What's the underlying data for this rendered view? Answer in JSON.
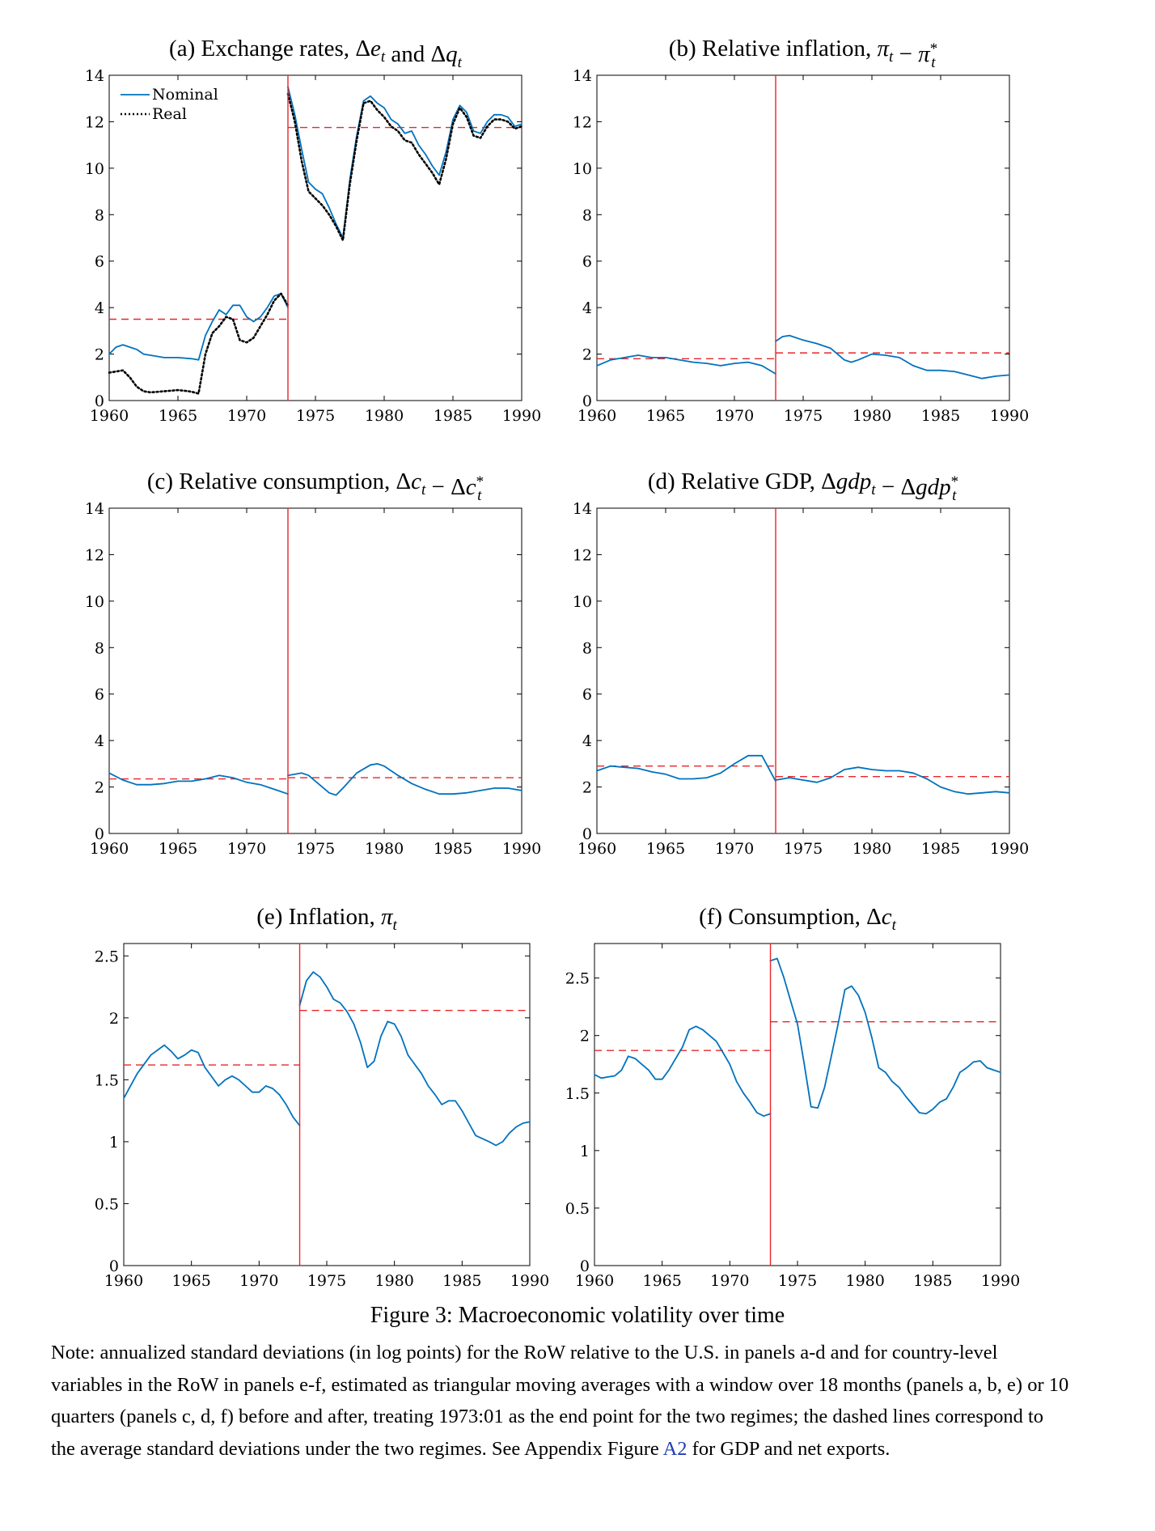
{
  "chart_data": [
    {
      "id": "a",
      "type": "line",
      "title": "(a) Exchange rates, Δe_t and Δq_t",
      "xlim": [
        1960,
        1990
      ],
      "ylim": [
        0,
        14
      ],
      "xticks": [
        1960,
        1965,
        1970,
        1975,
        1980,
        1985,
        1990
      ],
      "yticks": [
        0,
        2,
        4,
        6,
        8,
        10,
        12,
        14
      ],
      "break_year": 1973,
      "regime_means": [
        {
          "x": [
            1960,
            1973
          ],
          "y": 3.5
        },
        {
          "x": [
            1973,
            1990
          ],
          "y": 11.75
        }
      ],
      "legend": {
        "position": "top-left",
        "entries": [
          "Nominal",
          "Real"
        ]
      },
      "series": [
        {
          "name": "Nominal",
          "style": "solid",
          "x": [
            1960,
            1960.5,
            1961,
            1961.5,
            1962,
            1962.5,
            1963,
            1964,
            1965,
            1966,
            1966.5,
            1967,
            1967.5,
            1968,
            1968.5,
            1969,
            1969.5,
            1970,
            1970.5,
            1971,
            1971.5,
            1972,
            1972.5,
            1973
          ],
          "y": [
            2.0,
            2.3,
            2.4,
            2.3,
            2.2,
            2.0,
            1.95,
            1.85,
            1.85,
            1.8,
            1.75,
            2.8,
            3.4,
            3.9,
            3.7,
            4.1,
            4.1,
            3.6,
            3.4,
            3.6,
            4.0,
            4.5,
            4.6,
            4.0
          ]
        },
        {
          "name": "Nominal",
          "style": "solid",
          "x": [
            1973,
            1973.5,
            1974,
            1974.5,
            1975,
            1975.5,
            1976,
            1976.5,
            1977,
            1977.5,
            1978,
            1978.5,
            1979,
            1979.5,
            1980,
            1980.5,
            1981,
            1981.5,
            1982,
            1982.5,
            1983,
            1983.5,
            1984,
            1984.5,
            1985,
            1985.5,
            1986,
            1986.5,
            1987,
            1987.5,
            1988,
            1988.5,
            1989,
            1989.5,
            1990
          ],
          "y": [
            13.5,
            12.3,
            10.8,
            9.4,
            9.1,
            8.9,
            8.3,
            7.6,
            7.0,
            9.5,
            11.4,
            12.9,
            13.1,
            12.8,
            12.6,
            12.1,
            11.9,
            11.5,
            11.6,
            11.0,
            10.6,
            10.1,
            9.7,
            10.7,
            12.1,
            12.7,
            12.4,
            11.6,
            11.5,
            12.0,
            12.3,
            12.3,
            12.2,
            11.8,
            11.9
          ]
        },
        {
          "name": "Real",
          "style": "dotted",
          "x": [
            1960,
            1960.5,
            1961,
            1961.5,
            1962,
            1962.5,
            1963,
            1964,
            1965,
            1965.5,
            1966,
            1966.5,
            1967,
            1967.5,
            1968,
            1968.5,
            1969,
            1969.5,
            1970,
            1970.5,
            1971,
            1971.5,
            1972,
            1972.5,
            1973
          ],
          "y": [
            1.2,
            1.25,
            1.3,
            1.0,
            0.6,
            0.4,
            0.35,
            0.4,
            0.45,
            0.42,
            0.38,
            0.3,
            2.0,
            2.9,
            3.2,
            3.6,
            3.5,
            2.6,
            2.5,
            2.7,
            3.2,
            3.7,
            4.3,
            4.6,
            4.1
          ]
        },
        {
          "name": "Real",
          "style": "dotted",
          "x": [
            1973,
            1973.5,
            1974,
            1974.5,
            1975,
            1975.5,
            1976,
            1976.5,
            1977,
            1977.5,
            1978,
            1978.5,
            1979,
            1979.5,
            1980,
            1980.5,
            1981,
            1981.5,
            1982,
            1982.5,
            1983,
            1983.5,
            1984,
            1984.5,
            1985,
            1985.5,
            1986,
            1986.5,
            1987,
            1987.5,
            1988,
            1988.5,
            1989,
            1989.5,
            1990
          ],
          "y": [
            13.2,
            12.0,
            10.3,
            9.0,
            8.7,
            8.4,
            8.0,
            7.5,
            6.9,
            9.3,
            11.2,
            12.8,
            12.9,
            12.5,
            12.2,
            11.8,
            11.6,
            11.2,
            11.1,
            10.6,
            10.2,
            9.8,
            9.3,
            10.4,
            11.9,
            12.6,
            12.2,
            11.4,
            11.3,
            11.8,
            12.1,
            12.1,
            12.0,
            11.7,
            11.8
          ]
        }
      ]
    },
    {
      "id": "b",
      "type": "line",
      "title": "(b) Relative inflation, π_t − π*_t",
      "xlim": [
        1960,
        1990
      ],
      "ylim": [
        0,
        14
      ],
      "xticks": [
        1960,
        1965,
        1970,
        1975,
        1980,
        1985,
        1990
      ],
      "yticks": [
        0,
        2,
        4,
        6,
        8,
        10,
        12,
        14
      ],
      "break_year": 1973,
      "regime_means": [
        {
          "x": [
            1960,
            1973
          ],
          "y": 1.8
        },
        {
          "x": [
            1973,
            1990
          ],
          "y": 2.05
        }
      ],
      "series": [
        {
          "name": "",
          "style": "solid",
          "x": [
            1960,
            1961,
            1962,
            1963,
            1964,
            1965,
            1966,
            1967,
            1968,
            1969,
            1970,
            1971,
            1972,
            1973
          ],
          "y": [
            1.5,
            1.75,
            1.85,
            1.95,
            1.85,
            1.85,
            1.75,
            1.65,
            1.6,
            1.5,
            1.6,
            1.65,
            1.5,
            1.15
          ]
        },
        {
          "name": "",
          "style": "solid",
          "x": [
            1973,
            1973.5,
            1974,
            1975,
            1976,
            1977,
            1978,
            1978.5,
            1979,
            1980,
            1981,
            1982,
            1983,
            1984,
            1985,
            1986,
            1987,
            1988,
            1989,
            1990
          ],
          "y": [
            2.55,
            2.75,
            2.8,
            2.6,
            2.45,
            2.25,
            1.75,
            1.65,
            1.75,
            2.0,
            1.95,
            1.85,
            1.5,
            1.3,
            1.3,
            1.25,
            1.1,
            0.95,
            1.05,
            1.1
          ]
        }
      ]
    },
    {
      "id": "c",
      "type": "line",
      "title": "(c) Relative consumption, Δc_t − Δc*_t",
      "xlim": [
        1960,
        1990
      ],
      "ylim": [
        0,
        14
      ],
      "xticks": [
        1960,
        1965,
        1970,
        1975,
        1980,
        1985,
        1990
      ],
      "yticks": [
        0,
        2,
        4,
        6,
        8,
        10,
        12,
        14
      ],
      "break_year": 1973,
      "regime_means": [
        {
          "x": [
            1960,
            1973
          ],
          "y": 2.35
        },
        {
          "x": [
            1973,
            1990
          ],
          "y": 2.4
        }
      ],
      "series": [
        {
          "name": "",
          "style": "solid",
          "x": [
            1960,
            1961,
            1962,
            1963,
            1964,
            1965,
            1966,
            1967,
            1968,
            1969,
            1970,
            1971,
            1972,
            1973
          ],
          "y": [
            2.6,
            2.3,
            2.1,
            2.1,
            2.15,
            2.25,
            2.25,
            2.35,
            2.5,
            2.4,
            2.2,
            2.1,
            1.9,
            1.7
          ]
        },
        {
          "name": "",
          "style": "solid",
          "x": [
            1973,
            1974,
            1974.5,
            1975,
            1976,
            1976.5,
            1977,
            1978,
            1979,
            1979.5,
            1980,
            1981,
            1982,
            1983,
            1984,
            1985,
            1986,
            1987,
            1988,
            1989,
            1990
          ],
          "y": [
            2.5,
            2.6,
            2.5,
            2.25,
            1.75,
            1.65,
            1.95,
            2.6,
            2.95,
            3.0,
            2.9,
            2.5,
            2.15,
            1.9,
            1.7,
            1.7,
            1.75,
            1.85,
            1.95,
            1.95,
            1.85
          ]
        }
      ]
    },
    {
      "id": "d",
      "type": "line",
      "title": "(d) Relative GDP, Δgdp_t − Δgdp*_t",
      "xlim": [
        1960,
        1990
      ],
      "ylim": [
        0,
        14
      ],
      "xticks": [
        1960,
        1965,
        1970,
        1975,
        1980,
        1985,
        1990
      ],
      "yticks": [
        0,
        2,
        4,
        6,
        8,
        10,
        12,
        14
      ],
      "break_year": 1973,
      "regime_means": [
        {
          "x": [
            1960,
            1973
          ],
          "y": 2.9
        },
        {
          "x": [
            1973,
            1990
          ],
          "y": 2.45
        }
      ],
      "series": [
        {
          "name": "",
          "style": "solid",
          "x": [
            1960,
            1961,
            1962,
            1963,
            1964,
            1965,
            1966,
            1967,
            1968,
            1969,
            1970,
            1971,
            1972,
            1973
          ],
          "y": [
            2.7,
            2.9,
            2.85,
            2.8,
            2.65,
            2.55,
            2.35,
            2.35,
            2.4,
            2.6,
            3.0,
            3.35,
            3.35,
            2.25
          ]
        },
        {
          "name": "",
          "style": "solid",
          "x": [
            1973,
            1974,
            1975,
            1976,
            1977,
            1978,
            1979,
            1980,
            1981,
            1982,
            1983,
            1984,
            1985,
            1986,
            1987,
            1988,
            1989,
            1990
          ],
          "y": [
            2.3,
            2.4,
            2.3,
            2.2,
            2.4,
            2.75,
            2.85,
            2.75,
            2.7,
            2.7,
            2.6,
            2.35,
            2.0,
            1.8,
            1.7,
            1.75,
            1.8,
            1.75
          ]
        }
      ]
    },
    {
      "id": "e",
      "type": "line",
      "title": "(e) Inflation, π_t",
      "xlim": [
        1960,
        1990
      ],
      "ylim": [
        0,
        2.6
      ],
      "xticks": [
        1960,
        1965,
        1970,
        1975,
        1980,
        1985,
        1990
      ],
      "yticks": [
        0,
        0.5,
        1,
        1.5,
        2,
        2.5
      ],
      "break_year": 1973,
      "regime_means": [
        {
          "x": [
            1960,
            1973
          ],
          "y": 1.62
        },
        {
          "x": [
            1973,
            1990
          ],
          "y": 2.06
        }
      ],
      "series": [
        {
          "name": "",
          "style": "solid",
          "x": [
            1960,
            1961,
            1962,
            1963,
            1963.5,
            1964,
            1964.5,
            1965,
            1965.5,
            1966,
            1967,
            1967.5,
            1968,
            1968.5,
            1969,
            1969.5,
            1970,
            1970.5,
            1971,
            1971.5,
            1972,
            1972.5,
            1973
          ],
          "y": [
            1.35,
            1.55,
            1.7,
            1.78,
            1.73,
            1.67,
            1.7,
            1.74,
            1.72,
            1.6,
            1.45,
            1.5,
            1.53,
            1.5,
            1.45,
            1.4,
            1.4,
            1.45,
            1.43,
            1.38,
            1.3,
            1.2,
            1.13
          ]
        },
        {
          "name": "",
          "style": "solid",
          "x": [
            1973,
            1973.5,
            1974,
            1974.5,
            1975,
            1975.5,
            1976,
            1976.5,
            1977,
            1977.5,
            1978,
            1978.5,
            1979,
            1979.5,
            1980,
            1980.5,
            1981,
            1982,
            1982.5,
            1983,
            1983.5,
            1984,
            1984.5,
            1985,
            1985.5,
            1986,
            1987,
            1987.5,
            1988,
            1988.5,
            1989,
            1989.5,
            1990
          ],
          "y": [
            2.1,
            2.3,
            2.37,
            2.33,
            2.25,
            2.15,
            2.12,
            2.05,
            1.95,
            1.8,
            1.6,
            1.65,
            1.85,
            1.97,
            1.95,
            1.85,
            1.7,
            1.55,
            1.45,
            1.38,
            1.3,
            1.33,
            1.33,
            1.25,
            1.15,
            1.05,
            1.0,
            0.97,
            1.0,
            1.07,
            1.12,
            1.15,
            1.16
          ]
        }
      ]
    },
    {
      "id": "f",
      "type": "line",
      "title": "(f) Consumption, Δc_t",
      "xlim": [
        1960,
        1990
      ],
      "ylim": [
        0,
        2.8
      ],
      "xticks": [
        1960,
        1965,
        1970,
        1975,
        1980,
        1985,
        1990
      ],
      "yticks": [
        0,
        0.5,
        1,
        1.5,
        2,
        2.5
      ],
      "break_year": 1973,
      "regime_means": [
        {
          "x": [
            1960,
            1973
          ],
          "y": 1.87
        },
        {
          "x": [
            1973,
            1990
          ],
          "y": 2.12
        }
      ],
      "series": [
        {
          "name": "",
          "style": "solid",
          "x": [
            1960,
            1960.5,
            1961,
            1961.5,
            1962,
            1962.5,
            1963,
            1963.5,
            1964,
            1964.5,
            1965,
            1965.5,
            1966,
            1966.5,
            1967,
            1967.5,
            1968,
            1968.5,
            1969,
            1969.5,
            1970,
            1970.5,
            1971,
            1971.5,
            1972,
            1972.5,
            1973
          ],
          "y": [
            1.66,
            1.63,
            1.64,
            1.65,
            1.7,
            1.82,
            1.8,
            1.75,
            1.7,
            1.62,
            1.62,
            1.7,
            1.8,
            1.9,
            2.05,
            2.08,
            2.05,
            2.0,
            1.95,
            1.85,
            1.75,
            1.6,
            1.5,
            1.42,
            1.33,
            1.3,
            1.32
          ]
        },
        {
          "name": "",
          "style": "solid",
          "x": [
            1973,
            1973.5,
            1974,
            1974.5,
            1975,
            1975.5,
            1976,
            1976.5,
            1977,
            1977.5,
            1978,
            1978.5,
            1979,
            1979.5,
            1980,
            1980.5,
            1981,
            1981.5,
            1982,
            1982.5,
            1983,
            1983.5,
            1984,
            1984.5,
            1985,
            1985.5,
            1986,
            1986.5,
            1987,
            1987.5,
            1988,
            1988.5,
            1989,
            1989.5,
            1990
          ],
          "y": [
            2.65,
            2.67,
            2.5,
            2.3,
            2.1,
            1.75,
            1.38,
            1.37,
            1.55,
            1.82,
            2.1,
            2.4,
            2.43,
            2.35,
            2.2,
            1.98,
            1.72,
            1.68,
            1.6,
            1.55,
            1.47,
            1.4,
            1.33,
            1.32,
            1.36,
            1.42,
            1.45,
            1.55,
            1.68,
            1.72,
            1.77,
            1.78,
            1.72,
            1.7,
            1.68
          ]
        }
      ]
    }
  ],
  "caption": "Figure 3: Macroeconomic volatility over time",
  "note": {
    "text": "Note: annualized standard deviations (in log points) for the RoW relative to the U.S. in panels a-d and for country-level variables in the RoW in panels e-f, estimated as triangular moving averages with a window over 18 months (panels a, b, e) or 10 quarters (panels c, d, f) before and after, treating 1973:01 as the end point for the two regimes; the dashed lines correspond to the average standard deviations under the two regimes. See Appendix Figure ",
    "link": "A2",
    "tail": " for GDP and net exports."
  },
  "colors": {
    "line": "#0072bd",
    "dotted": "#000000",
    "break_line": "#e8262b",
    "mean_line": "#e8262b",
    "axis": "#000000",
    "link": "#1f3fb0"
  }
}
